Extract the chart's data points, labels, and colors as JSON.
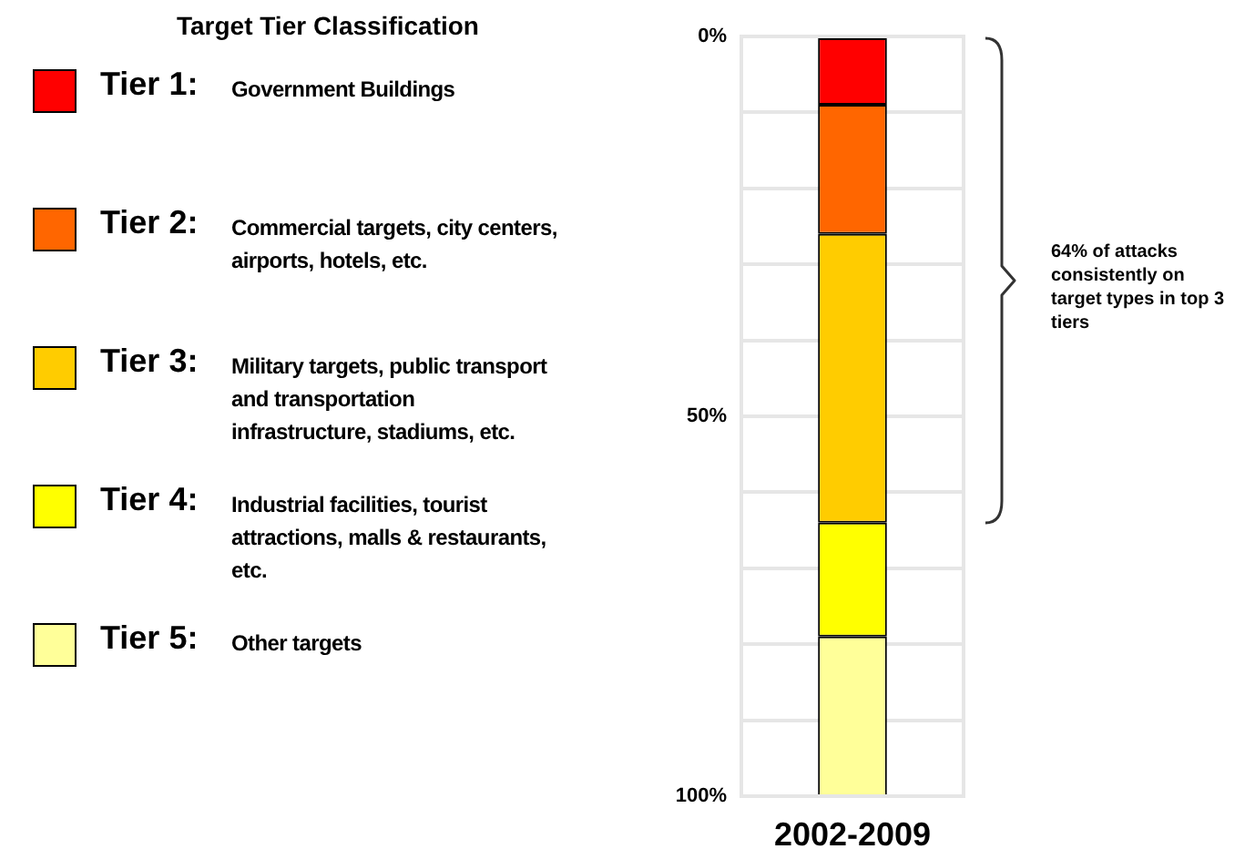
{
  "chart_data": {
    "type": "bar",
    "stacked": true,
    "legend_title": "Target Tier Classification",
    "legend": "left",
    "grid": "y",
    "categories": [
      "2002-2009"
    ],
    "series": [
      {
        "name": "Tier 1: Government Buildings",
        "color": "#ff0000",
        "values": [
          9
        ]
      },
      {
        "name": "Tier 2: Commercial targets, city centers, airports, hotels, etc.",
        "color": "#ff6600",
        "values": [
          17
        ]
      },
      {
        "name": "Tier 3: Military targets, public transport and transportation infrastructure, stadiums, etc.",
        "color": "#ffcc00",
        "values": [
          38
        ]
      },
      {
        "name": "Tier 4: Industrial facilities, tourist attractions, malls & restaurants, etc.",
        "color": "#ffff00",
        "values": [
          15
        ]
      },
      {
        "name": "Tier 5: Other targets",
        "color": "#ffff99",
        "values": [
          21
        ]
      }
    ],
    "ylim": [
      100,
      0
    ],
    "yticks": [
      {
        "value": 0,
        "label": "0%"
      },
      {
        "value": 10,
        "label": null
      },
      {
        "value": 20,
        "label": null
      },
      {
        "value": 30,
        "label": null
      },
      {
        "value": 40,
        "label": null
      },
      {
        "value": 50,
        "label": "50%"
      },
      {
        "value": 60,
        "label": null
      },
      {
        "value": 70,
        "label": null
      },
      {
        "value": 80,
        "label": null
      },
      {
        "value": 90,
        "label": null
      },
      {
        "value": 100,
        "label": "100%"
      }
    ],
    "annotations": [
      "64% of attacks consistently on target types in top 3 tiers"
    ]
  }
}
